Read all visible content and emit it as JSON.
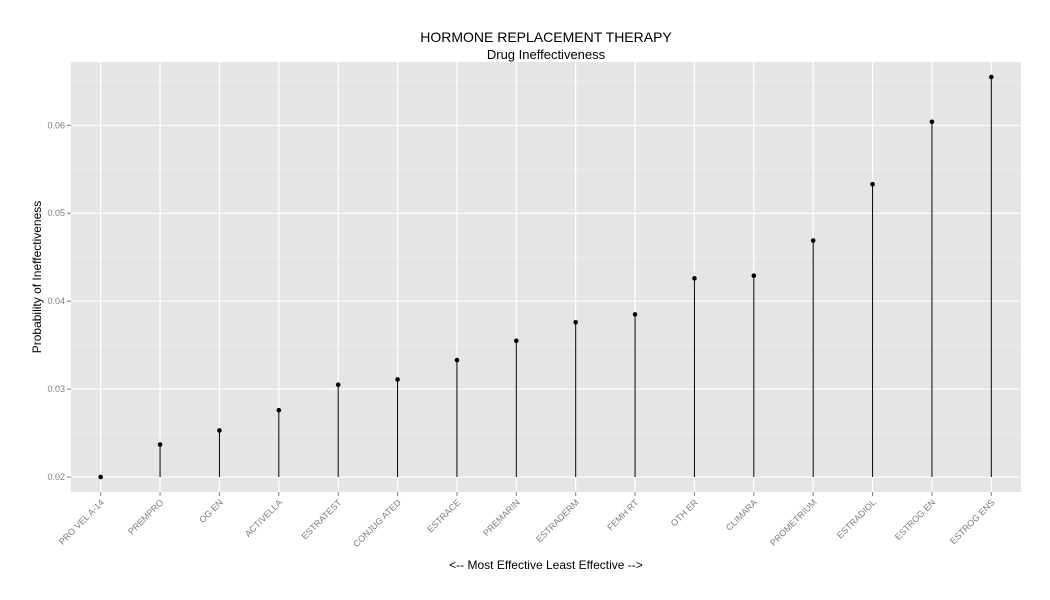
{
  "chart_data": {
    "type": "lollipop",
    "title": "HORMONE REPLACEMENT THERAPY",
    "subtitle": "Drug Ineffectiveness",
    "xlabel": "<-- Most Effective     Least Effective -->",
    "ylabel": "Probability of Ineffectiveness",
    "categories": [
      "PRO VEL A-14",
      "PREMPRO",
      "OG EN",
      "ACTIVELLA",
      "ESTRATEST",
      "CONJUG ATED",
      "ESTRACE",
      "PREMARIN",
      "ESTRADERM",
      "FEMH RT",
      "OTH ER",
      "CLIMARA",
      "PROMETRIUM",
      "ESTRADIOL",
      "ESTROG EN",
      "ESTROG ENS"
    ],
    "values": [
      0.02,
      0.0237,
      0.0253,
      0.0276,
      0.0305,
      0.0311,
      0.0333,
      0.0355,
      0.0376,
      0.0385,
      0.0426,
      0.0429,
      0.0469,
      0.0533,
      0.0604,
      0.0655
    ],
    "yticks": [
      0.02,
      0.03,
      0.04,
      0.05,
      0.06
    ],
    "ytick_labels": [
      "0.02",
      "0.03",
      "0.04",
      "0.05",
      "0.06"
    ],
    "ylim": [
      0.0183,
      0.0672
    ],
    "grid": true,
    "colors": {
      "panel_background": "#e5e5e5",
      "grid_major": "#ffffff",
      "grid_minor": "#f2f2f2",
      "mark": "#000000",
      "tick_text": "#7f7f7f"
    }
  }
}
